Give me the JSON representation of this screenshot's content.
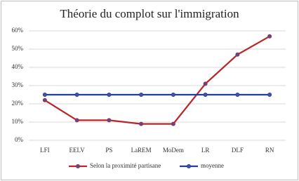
{
  "chart_data": {
    "type": "line",
    "title": "Théorie du complot sur l'immigration",
    "categories": [
      "LFI",
      "EELV",
      "PS",
      "LaREM",
      "MoDem",
      "LR",
      "DLF",
      "RN"
    ],
    "series": [
      {
        "name": "Selon la proximité partisane",
        "color": "#b8262b",
        "values": [
          22,
          11,
          11,
          9,
          9,
          31,
          47,
          57
        ]
      },
      {
        "name": "moyenne",
        "color": "#1f3f9e",
        "values": [
          25,
          25,
          25,
          25,
          25,
          25,
          25,
          25
        ]
      }
    ],
    "ylim": [
      0,
      60
    ],
    "yticks": [
      {
        "value": 0,
        "label": "0%"
      },
      {
        "value": 10,
        "label": "10%"
      },
      {
        "value": 20,
        "label": "20%"
      },
      {
        "value": 30,
        "label": "30%"
      },
      {
        "value": 40,
        "label": "40%"
      },
      {
        "value": 50,
        "label": "50%"
      },
      {
        "value": 60,
        "label": "60%"
      }
    ],
    "grid": true,
    "legend": "bottom"
  }
}
